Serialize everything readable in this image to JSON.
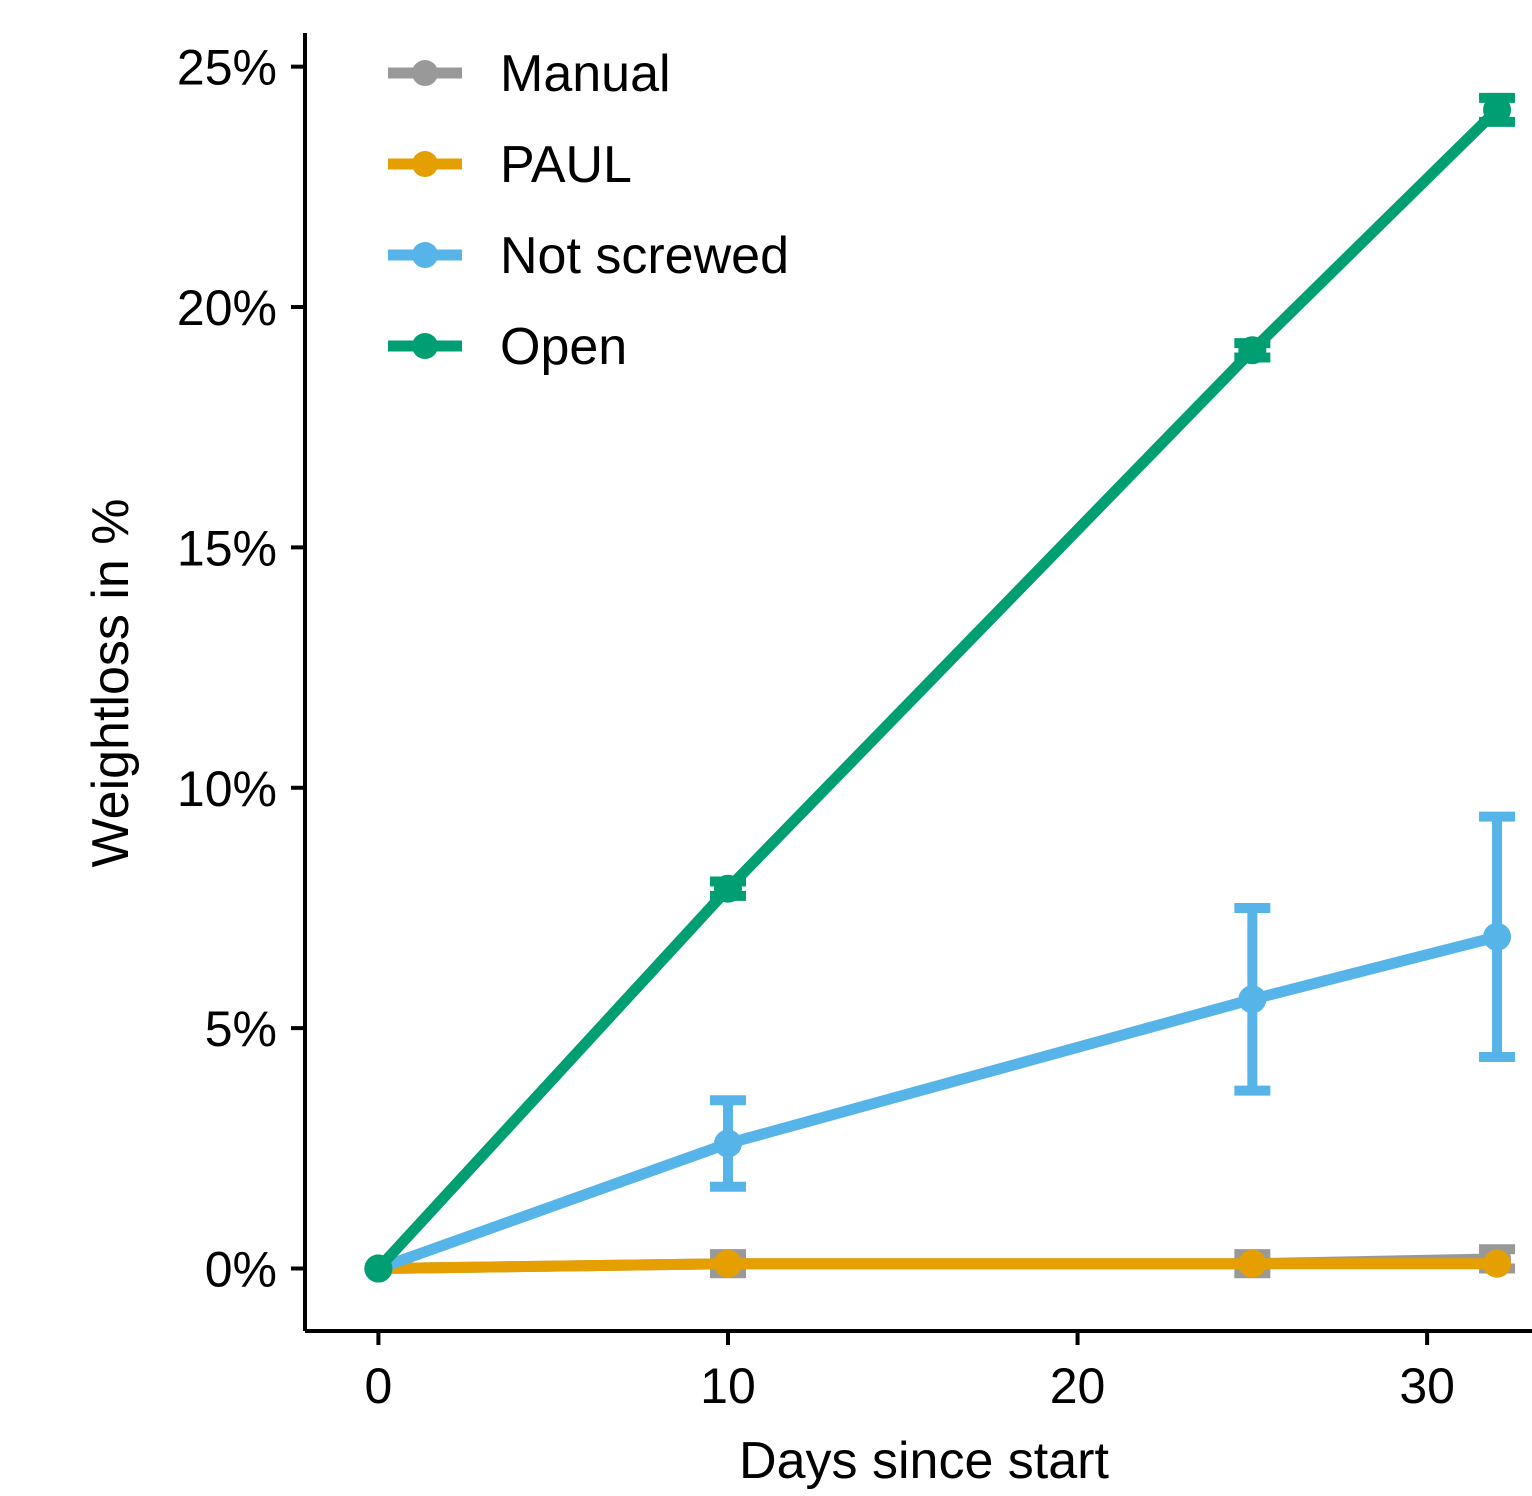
{
  "chart_data": {
    "type": "line",
    "title": "",
    "xlabel": "Days since start",
    "ylabel": "Weightloss in %",
    "xlim": [
      -2.1,
      33
    ],
    "ylim": [
      -1.3,
      25.7
    ],
    "x_ticks": [
      0,
      10,
      20,
      30
    ],
    "x_tick_labels": [
      "0",
      "10",
      "20",
      "30"
    ],
    "y_ticks": [
      0,
      5,
      10,
      15,
      20,
      25
    ],
    "y_tick_labels": [
      "0%",
      "5%",
      "10%",
      "15%",
      "20%",
      "25%"
    ],
    "grid": false,
    "legend_position": "top-left",
    "series": [
      {
        "name": "Manual",
        "color": "#999999",
        "x": [
          0,
          10,
          25,
          32
        ],
        "y": [
          0,
          0.1,
          0.1,
          0.2
        ],
        "error": [
          0,
          0.2,
          0.2,
          0.2
        ]
      },
      {
        "name": "PAUL",
        "color": "#E69F00",
        "x": [
          0,
          10,
          25,
          32
        ],
        "y": [
          0,
          0.1,
          0.1,
          0.1
        ],
        "error": [
          0,
          0,
          0,
          0
        ]
      },
      {
        "name": "Not screwed",
        "color": "#56B4E9",
        "x": [
          0,
          10,
          25,
          32
        ],
        "y": [
          0,
          2.6,
          5.6,
          6.9
        ],
        "error": [
          0,
          0.9,
          1.9,
          2.5
        ]
      },
      {
        "name": "Open",
        "color": "#009E73",
        "x": [
          0,
          10,
          25,
          32
        ],
        "y": [
          0,
          7.9,
          19.1,
          24.1
        ],
        "error": [
          0,
          0.15,
          0.15,
          0.25
        ]
      }
    ]
  }
}
